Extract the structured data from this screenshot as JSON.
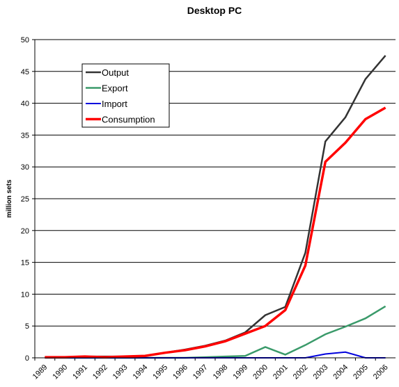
{
  "chart_data": {
    "type": "line",
    "title": "Desktop PC",
    "y_label": "million sets",
    "categories": [
      "1989",
      "1990",
      "1991",
      "1992",
      "1993",
      "1994",
      "1995",
      "1996",
      "1997",
      "1998",
      "1999",
      "2000",
      "2001",
      "2002",
      "2003",
      "2004",
      "2005",
      "2006"
    ],
    "series": [
      {
        "name": "Output",
        "color": "#333333",
        "width": 2.5,
        "values": [
          0.1,
          0.1,
          0.2,
          0.2,
          0.2,
          0.3,
          0.8,
          1.3,
          1.9,
          2.7,
          4.0,
          6.7,
          8.0,
          16.5,
          34.0,
          37.8,
          43.8,
          47.5
        ]
      },
      {
        "name": "Export",
        "color": "#3a9a6a",
        "width": 2.5,
        "values": [
          0,
          0,
          0,
          0,
          0,
          0,
          0,
          0,
          0.1,
          0.2,
          0.3,
          1.7,
          0.5,
          2.0,
          3.7,
          4.9,
          6.2,
          8.1
        ]
      },
      {
        "name": "Import",
        "color": "#0000dd",
        "width": 2,
        "values": [
          0,
          0,
          0,
          0,
          0,
          0,
          0,
          0,
          0,
          0,
          0,
          0,
          0,
          0,
          0.6,
          0.9,
          0,
          0
        ]
      },
      {
        "name": "Consumption",
        "color": "#ff0000",
        "width": 3.5,
        "values": [
          0.1,
          0.1,
          0.2,
          0.1,
          0.2,
          0.3,
          0.8,
          1.2,
          1.8,
          2.6,
          3.8,
          5.0,
          7.5,
          14.5,
          30.8,
          33.8,
          37.5,
          39.3
        ]
      }
    ],
    "ylim": [
      0,
      50
    ],
    "yticks": [
      0,
      5,
      10,
      15,
      20,
      25,
      30,
      35,
      40,
      45,
      50
    ],
    "grid": true
  }
}
